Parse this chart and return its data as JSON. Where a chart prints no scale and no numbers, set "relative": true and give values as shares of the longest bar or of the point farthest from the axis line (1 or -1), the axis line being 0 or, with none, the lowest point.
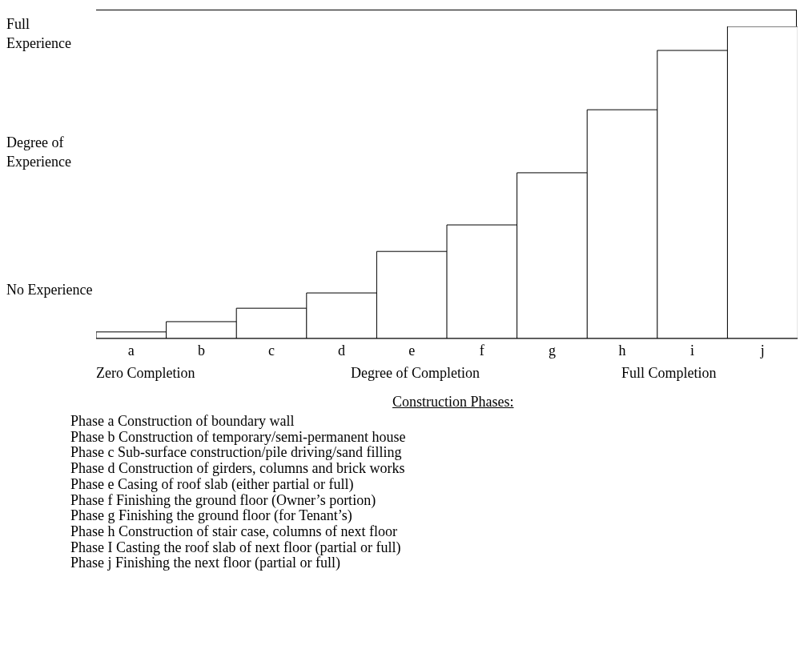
{
  "chart_data": {
    "type": "bar",
    "relative": true,
    "categories": [
      "a",
      "b",
      "c",
      "d",
      "e",
      "f",
      "g",
      "h",
      "i",
      "j"
    ],
    "values": [
      0.021,
      0.054,
      0.097,
      0.146,
      0.279,
      0.364,
      0.531,
      0.733,
      0.923,
      1
    ],
    "color": "#ffffff",
    "ylabel": "Degree of Experience",
    "xlabel": "Degree of Completion",
    "annotations": [
      "Full Experience",
      "No Experience",
      "Zero Completion",
      "Full Completion",
      "Construction Phases:",
      "Phase a Construction of boundary wall",
      "Phase b Construction of temporary/semi-permanent house",
      "Phase c Sub-surface construction/pile driving/sand filling",
      "Phase d Construction of girders, columns and brick works",
      "Phase e Casing of roof slab (either partial or full)",
      "Phase f Finishing the ground floor (Owner’s portion)",
      "Phase g Finishing the ground floor (for Tenant’s)",
      "Phase h Construction of stair case, columns of next floor",
      "Phase I Casting the roof slab of next floor (partial or full)",
      "Phase j Finishing the next floor (partial or full)"
    ]
  }
}
